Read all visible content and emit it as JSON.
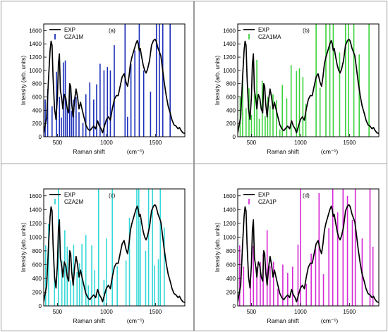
{
  "chart_data": [
    {
      "type": "line",
      "panel_label": "(a)",
      "xlabel": "Raman shift",
      "xunit": "(cm⁻¹)",
      "ylabel": "Intensity (arb. units)",
      "xlim": [
        360,
        1800
      ],
      "ylim": [
        0,
        1700
      ],
      "xticks": [
        500,
        1000,
        1500
      ],
      "yticks": [
        0,
        200,
        400,
        600,
        800,
        1000,
        1200,
        1400,
        1600
      ],
      "legend_position": "top-left",
      "series": [
        {
          "name": "EXP",
          "color": "#000000",
          "kind": "line"
        },
        {
          "name": "CZA1M",
          "color": "#1a2eb8",
          "kind": "sticks",
          "x": [
            375,
            400,
            445,
            490,
            520,
            540,
            560,
            580,
            600,
            625,
            645,
            665,
            690,
            720,
            760,
            790,
            830,
            870,
            900,
            935,
            975,
            1010,
            1040,
            1080,
            1190,
            1215,
            1250,
            1290,
            1335,
            1380,
            1450,
            1510,
            1540,
            1575,
            1650
          ],
          "y": [
            560,
            720,
            460,
            980,
            600,
            290,
            1120,
            1150,
            430,
            700,
            390,
            560,
            600,
            370,
            210,
            640,
            820,
            560,
            790,
            1100,
            1000,
            1050,
            1000,
            1380,
            1700,
            300,
            1100,
            1300,
            1700,
            1000,
            680,
            1700,
            1700,
            1700,
            1700
          ]
        }
      ]
    },
    {
      "type": "line",
      "panel_label": "(b)",
      "xlabel": "Raman shift",
      "xunit": "(cm⁻¹)",
      "ylabel": "Intensity (arb. units)",
      "xlim": [
        360,
        1800
      ],
      "ylim": [
        0,
        1700
      ],
      "xticks": [
        500,
        1000,
        1500
      ],
      "yticks": [
        0,
        200,
        400,
        600,
        800,
        1000,
        1200,
        1400,
        1600
      ],
      "legend_position": "top-left",
      "series": [
        {
          "name": "EXP",
          "color": "#000000",
          "kind": "line"
        },
        {
          "name": "CZA1MA",
          "color": "#3cd23c",
          "kind": "sticks",
          "x": [
            385,
            410,
            445,
            475,
            500,
            530,
            555,
            580,
            610,
            640,
            665,
            690,
            720,
            755,
            790,
            815,
            860,
            905,
            960,
            990,
            1025,
            1055,
            1160,
            1200,
            1260,
            1300,
            1335,
            1400,
            1460,
            1490,
            1545,
            1600,
            1700
          ],
          "y": [
            600,
            900,
            430,
            730,
            330,
            650,
            1160,
            270,
            840,
            310,
            600,
            470,
            640,
            550,
            110,
            780,
            580,
            1080,
            990,
            1030,
            900,
            500,
            1700,
            740,
            1700,
            1700,
            1700,
            1270,
            1700,
            1700,
            1700,
            1240,
            1700
          ]
        }
      ]
    },
    {
      "type": "line",
      "panel_label": "(c)",
      "xlabel": "Raman shift",
      "xunit": "(cm⁻¹)",
      "ylabel": "Intensity (arb. units)",
      "xlim": [
        360,
        1800
      ],
      "ylim": [
        0,
        1700
      ],
      "xticks": [
        500,
        1000,
        1500
      ],
      "yticks": [
        0,
        200,
        400,
        600,
        800,
        1000,
        1200,
        1400,
        1600
      ],
      "legend_position": "top-left",
      "series": [
        {
          "name": "EXP",
          "color": "#000000",
          "kind": "line"
        },
        {
          "name": "CZA2M",
          "color": "#34d8d8",
          "kind": "sticks",
          "x": [
            380,
            410,
            470,
            510,
            545,
            575,
            600,
            635,
            665,
            700,
            725,
            750,
            790,
            815,
            850,
            880,
            920,
            975,
            1000,
            1060,
            1110,
            1200,
            1235,
            1310,
            1330,
            1345,
            1400,
            1430,
            1470,
            1490,
            1530,
            1550,
            1590
          ],
          "y": [
            880,
            1190,
            520,
            1700,
            660,
            1100,
            860,
            370,
            890,
            490,
            620,
            900,
            1030,
            300,
            880,
            520,
            1700,
            380,
            980,
            1700,
            580,
            660,
            1280,
            1700,
            1700,
            1230,
            800,
            1700,
            1700,
            590,
            680,
            1700,
            1140
          ]
        }
      ]
    },
    {
      "type": "line",
      "panel_label": "(d)",
      "xlabel": "Raman shift",
      "xunit": "(cm⁻¹)",
      "ylabel": "Intensity (arb. units)",
      "xlim": [
        360,
        1800
      ],
      "ylim": [
        0,
        1700
      ],
      "xticks": [
        500,
        1000,
        1500
      ],
      "yticks": [
        0,
        200,
        400,
        600,
        800,
        1000,
        1200,
        1400,
        1600
      ],
      "legend_position": "top-left",
      "series": [
        {
          "name": "EXP",
          "color": "#000000",
          "kind": "line"
        },
        {
          "name": "CZA1P",
          "color": "#d62ad6",
          "kind": "sticks",
          "x": [
            380,
            420,
            490,
            520,
            555,
            590,
            620,
            660,
            690,
            725,
            770,
            820,
            870,
            920,
            975,
            1000,
            1060,
            1110,
            1155,
            1190,
            1235,
            1290,
            1330,
            1380,
            1435,
            1480,
            1530,
            1560,
            1630,
            1710,
            1740
          ],
          "y": [
            880,
            570,
            460,
            870,
            560,
            640,
            760,
            1100,
            580,
            640,
            250,
            600,
            480,
            570,
            890,
            1700,
            320,
            760,
            850,
            1640,
            460,
            1130,
            1700,
            1360,
            1700,
            1600,
            1250,
            1700,
            980,
            1700,
            860
          ]
        }
      ]
    }
  ]
}
